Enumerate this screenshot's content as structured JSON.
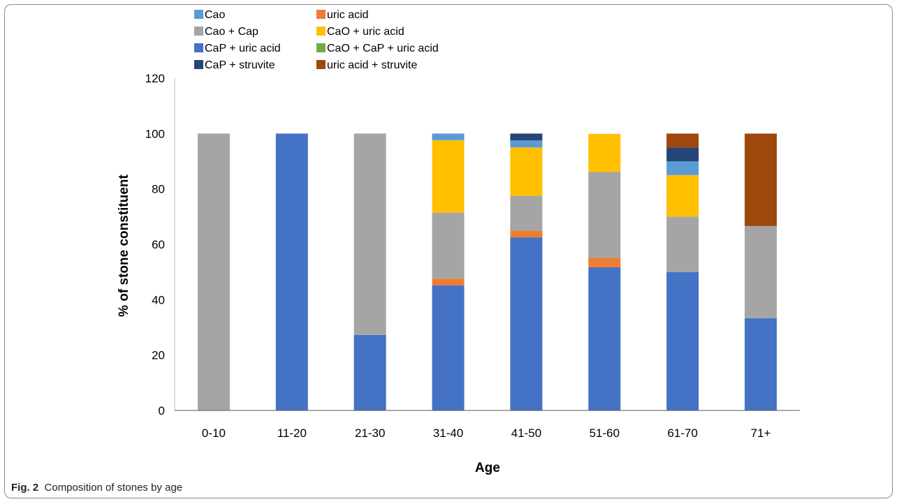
{
  "chart_data": {
    "type": "bar",
    "stacked": true,
    "xlabel": "Age",
    "ylabel": "% of stone constituent",
    "ylim": [
      0,
      120
    ],
    "yticks": [
      0,
      20,
      40,
      60,
      80,
      100,
      120
    ],
    "grid": false,
    "legend_position": "top",
    "categories": [
      "0-10",
      "11-20",
      "21-30",
      "31-40",
      "41-50",
      "51-60",
      "61-70",
      "71+"
    ],
    "series": [
      {
        "name": "CaP + uric acid",
        "color": "#4472C4",
        "values": [
          0,
          100,
          27.3,
          45.2,
          62.5,
          51.7,
          50,
          33.3
        ]
      },
      {
        "name": "uric acid",
        "color": "#ED7D31",
        "values": [
          0,
          0,
          0,
          2.4,
          2.5,
          3.4,
          0,
          0
        ]
      },
      {
        "name": "Cao + Cap",
        "color": "#A5A5A5",
        "values": [
          100,
          0,
          72.7,
          23.8,
          12.5,
          31,
          20,
          33.3
        ]
      },
      {
        "name": "CaO + uric acid",
        "color": "#FFC000",
        "values": [
          0,
          0,
          0,
          26.2,
          17.5,
          13.8,
          15,
          0
        ]
      },
      {
        "name": "CaO + CaP + uric acid",
        "color": "#70AD47",
        "values": [
          0,
          0,
          0,
          0,
          0,
          0,
          0,
          0
        ]
      },
      {
        "name": "Cao",
        "color": "#5B9BD5",
        "values": [
          0,
          0,
          0,
          2.4,
          2.5,
          0,
          5,
          0
        ]
      },
      {
        "name": "CaP + struvite",
        "color": "#264478",
        "values": [
          0,
          0,
          0,
          0,
          2.5,
          0,
          5,
          0
        ]
      },
      {
        "name": "uric acid + struvite",
        "color": "#9E480E",
        "values": [
          0,
          0,
          0,
          0,
          0,
          0,
          5,
          33.4
        ]
      }
    ],
    "legend_order": [
      "Cao",
      "uric acid",
      "Cao + Cap",
      "CaO + uric acid",
      "CaP + uric acid",
      "CaO + CaP + uric acid",
      "CaP + struvite",
      "uric acid + struvite"
    ]
  },
  "caption": {
    "label": "Fig. 2",
    "text": "Composition of stones by age"
  }
}
